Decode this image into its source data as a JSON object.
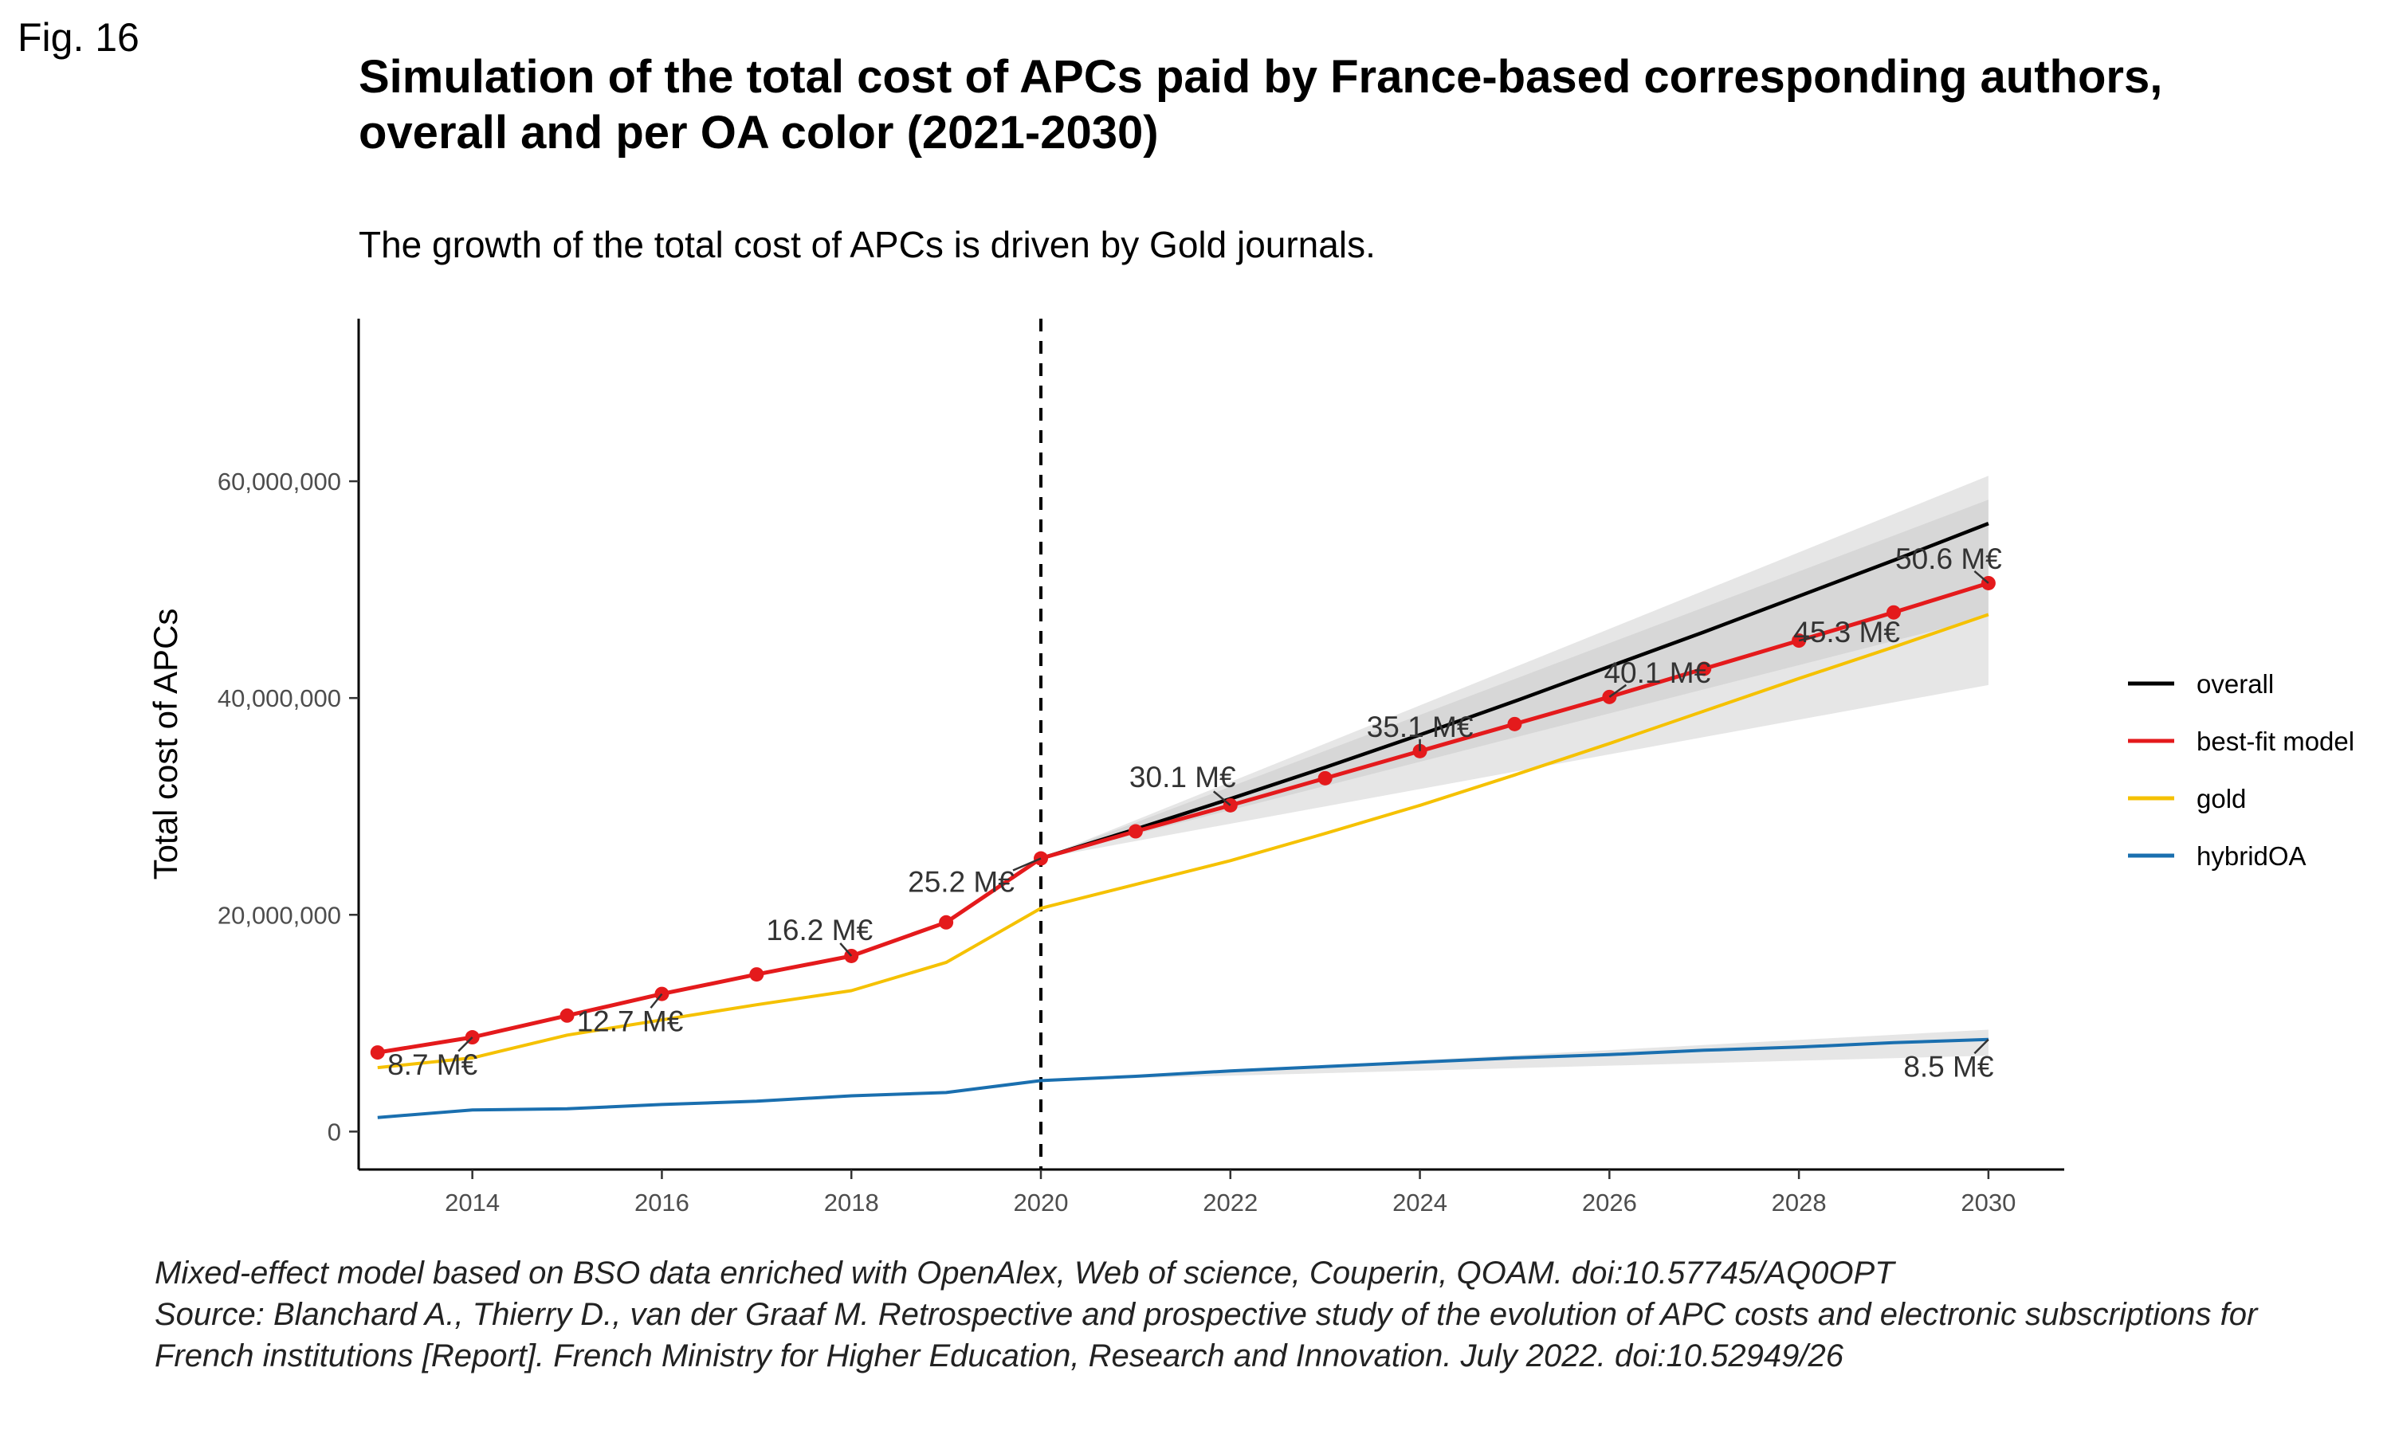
{
  "figure": {
    "label": "Fig. 16",
    "title_lines": [
      "Simulation of the total cost of APCs paid by France-based corresponding authors,",
      "overall and per OA color (2021-2030)"
    ],
    "subtitle": "The growth of the total cost of APCs is driven by Gold journals.",
    "caption_lines": [
      "Mixed-effect model based on BSO data enriched with OpenAlex, Web of science, Couperin, QOAM. doi:10.57745/AQ0OPT",
      "Source: Blanchard A., Thierry D., van der Graaf M. Retrospective and prospective study of the evolution of APC costs and electronic subscriptions for",
      "French institutions [Report]. French Ministry for Higher Education, Research and Innovation. July 2022. doi:10.52949/26"
    ]
  },
  "chart_data": {
    "type": "line",
    "title": "Simulation of the total cost of APCs paid by France-based corresponding authors, overall and per OA color (2021-2030)",
    "subtitle": "The growth of the total cost of APCs is driven by Gold journals.",
    "xlabel": "",
    "ylabel": "Total cost of APCs",
    "xlim": [
      2012.8,
      2030.8
    ],
    "ylim": [
      -3500000,
      75000000
    ],
    "x_ticks": [
      2014,
      2016,
      2018,
      2020,
      2022,
      2024,
      2026,
      2028,
      2030
    ],
    "y_ticks": [
      0,
      20000000,
      40000000,
      60000000
    ],
    "y_tick_labels": [
      "0",
      "20,000,000",
      "40,000,000",
      "60,000,000"
    ],
    "vline_x": 2020,
    "legend_position": "right",
    "grid": false,
    "series": [
      {
        "name": "overall",
        "color": "#000000",
        "x": [
          2020,
          2021,
          2022,
          2023,
          2024,
          2025,
          2026,
          2027,
          2028,
          2029,
          2030
        ],
        "y": [
          25200000,
          27900000,
          30700000,
          33600000,
          36600000,
          39700000,
          42900000,
          46100000,
          49400000,
          52700000,
          56100000
        ]
      },
      {
        "name": "best-fit model",
        "color": "#e41a1c",
        "x": [
          2013,
          2014,
          2015,
          2016,
          2017,
          2018,
          2019,
          2020,
          2021,
          2022,
          2023,
          2024,
          2025,
          2026,
          2027,
          2028,
          2029,
          2030
        ],
        "y": [
          7300000,
          8700000,
          10700000,
          12700000,
          14500000,
          16200000,
          19300000,
          25200000,
          27700000,
          30100000,
          32600000,
          35100000,
          37600000,
          40100000,
          42700000,
          45300000,
          47900000,
          50600000
        ]
      },
      {
        "name": "gold",
        "color": "#f5c100",
        "x": [
          2013,
          2014,
          2015,
          2016,
          2017,
          2018,
          2019,
          2020,
          2021,
          2022,
          2023,
          2024,
          2025,
          2026,
          2027,
          2028,
          2029,
          2030
        ],
        "y": [
          5900000,
          6800000,
          8900000,
          10300000,
          11700000,
          13000000,
          15600000,
          20600000,
          22800000,
          25000000,
          27500000,
          30100000,
          32900000,
          35800000,
          38800000,
          41800000,
          44700000,
          47700000
        ]
      },
      {
        "name": "hybridOA",
        "color": "#1a6faf",
        "x": [
          2013,
          2014,
          2015,
          2016,
          2017,
          2018,
          2019,
          2020,
          2021,
          2022,
          2023,
          2024,
          2025,
          2026,
          2027,
          2028,
          2029,
          2030
        ],
        "y": [
          1300000,
          2000000,
          2100000,
          2500000,
          2800000,
          3300000,
          3600000,
          4700000,
          5100000,
          5600000,
          6000000,
          6400000,
          6800000,
          7100000,
          7500000,
          7800000,
          8200000,
          8500000
        ]
      }
    ],
    "confidence_bands": [
      {
        "series": "overall",
        "x": [
          2020,
          2030
        ],
        "lower": [
          25200000,
          41200000
        ],
        "upper": [
          25200000,
          60500000
        ],
        "color": "#e6e6e6"
      },
      {
        "series": "overall",
        "x": [
          2020,
          2030
        ],
        "lower": [
          25200000,
          47500000
        ],
        "upper": [
          25200000,
          58300000
        ],
        "color": "#d7d7d7"
      },
      {
        "series": "hybridOA",
        "x": [
          2020,
          2030
        ],
        "lower": [
          4700000,
          7000000
        ],
        "upper": [
          4700000,
          9400000
        ],
        "color": "#e6e6e6"
      }
    ],
    "data_labels": [
      {
        "text": "8.7 M€",
        "x": 2014,
        "y": 8700000
      },
      {
        "text": "12.7 M€",
        "x": 2016,
        "y": 12700000
      },
      {
        "text": "16.2 M€",
        "x": 2018,
        "y": 16200000
      },
      {
        "text": "25.2 M€",
        "x": 2020,
        "y": 25200000
      },
      {
        "text": "30.1 M€",
        "x": 2022,
        "y": 30100000
      },
      {
        "text": "35.1 M€",
        "x": 2024,
        "y": 35100000
      },
      {
        "text": "40.1 M€",
        "x": 2026,
        "y": 40100000
      },
      {
        "text": "45.3 M€",
        "x": 2028,
        "y": 45300000
      },
      {
        "text": "50.6 M€",
        "x": 2030,
        "y": 50600000
      },
      {
        "text": "8.5 M€",
        "x": 2030,
        "y": 8500000
      }
    ]
  }
}
